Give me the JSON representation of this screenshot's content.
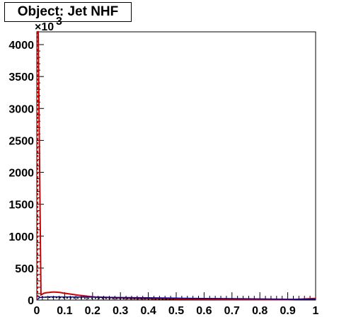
{
  "title": "Object: Jet NHF",
  "chart_data": {
    "type": "histogram",
    "title": "Object: Jet NHF",
    "xlabel": "",
    "ylabel": "",
    "xlim": [
      0,
      1
    ],
    "ylim": [
      0,
      4200
    ],
    "y_multiplier_label": "×10",
    "y_multiplier_exponent": "3",
    "x_ticks": [
      "0",
      "0.1",
      "0.2",
      "0.3",
      "0.4",
      "0.5",
      "0.6",
      "0.7",
      "0.8",
      "0.9",
      "1"
    ],
    "y_ticks": [
      "0",
      "500",
      "1000",
      "1500",
      "2000",
      "2500",
      "3000",
      "3500",
      "4000"
    ],
    "colors": {
      "series_a": "#cc0000",
      "series_b": "#000099",
      "frame": "#000000"
    },
    "series": [
      {
        "style": "red-line",
        "x": [
          0.0,
          0.005,
          0.015,
          0.025,
          0.035,
          0.045,
          0.055,
          0.065,
          0.075,
          0.085,
          0.095,
          0.11,
          0.13,
          0.15,
          0.17,
          0.19,
          0.21,
          0.25,
          0.3,
          0.35,
          0.4,
          0.5,
          0.6,
          0.7,
          0.8,
          0.9,
          0.95,
          1.0
        ],
        "y": [
          4200,
          4200,
          80,
          105,
          115,
          120,
          125,
          125,
          122,
          118,
          110,
          100,
          88,
          75,
          65,
          55,
          48,
          40,
          32,
          26,
          22,
          16,
          12,
          9,
          7,
          5,
          15,
          25
        ]
      },
      {
        "style": "blue-line",
        "x": [
          0.0,
          0.01,
          0.05,
          0.1,
          0.2,
          0.3,
          0.4,
          0.5,
          0.6,
          0.7,
          0.8,
          0.9,
          1.0
        ],
        "y": [
          0,
          40,
          50,
          48,
          45,
          40,
          35,
          30,
          26,
          22,
          18,
          14,
          10
        ]
      },
      {
        "style": "black-dotted",
        "x": [
          0.005,
          0.015,
          0.03,
          0.05,
          0.08,
          0.12,
          0.2,
          0.3,
          0.4,
          0.5
        ],
        "y": [
          60,
          50,
          45,
          40,
          35,
          30,
          25,
          20,
          15,
          10
        ]
      }
    ]
  }
}
